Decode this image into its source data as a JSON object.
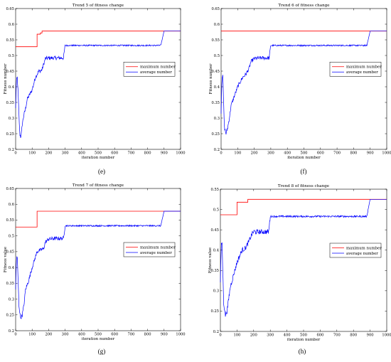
{
  "chart_data": [
    {
      "type": "line",
      "panel_label": "(e)",
      "title": "Trend 5 of fitness change",
      "xlabel": "iteration number",
      "ylabel": "Fitness number",
      "xlim": [
        0,
        1000
      ],
      "ylim": [
        0.2,
        0.65
      ],
      "xticks": [
        "0",
        "100",
        "200",
        "300",
        "400",
        "500",
        "600",
        "700",
        "800",
        "900",
        "1000"
      ],
      "yticks": [
        "0.2",
        "0.25",
        "0.3",
        "0.35",
        "0.4",
        "0.45",
        "0.5",
        "0.55",
        "0.6",
        "0.65"
      ],
      "legend_position": "center-right",
      "series": [
        {
          "name": "maximum number",
          "color": "#ff0000",
          "style": "step",
          "x": [
            0,
            130,
            130,
            150,
            150,
            160,
            160,
            1000
          ],
          "y": [
            0.528,
            0.528,
            0.568,
            0.568,
            0.572,
            0.572,
            0.578,
            0.578
          ]
        },
        {
          "name": "average number",
          "color": "#0000ff",
          "style": "noisy",
          "x": [
            0,
            5,
            10,
            15,
            20,
            25,
            30,
            35,
            40,
            50,
            60,
            70,
            80,
            100,
            120,
            130,
            140,
            150,
            160,
            180,
            200,
            240,
            290,
            300,
            320,
            400,
            500,
            600,
            700,
            800,
            880,
            900,
            1000
          ],
          "y": [
            0.33,
            0.42,
            0.43,
            0.38,
            0.31,
            0.25,
            0.24,
            0.25,
            0.28,
            0.31,
            0.33,
            0.36,
            0.37,
            0.39,
            0.43,
            0.44,
            0.45,
            0.45,
            0.455,
            0.49,
            0.492,
            0.492,
            0.492,
            0.532,
            0.532,
            0.532,
            0.532,
            0.532,
            0.532,
            0.532,
            0.532,
            0.578,
            0.578
          ]
        }
      ]
    },
    {
      "type": "line",
      "panel_label": "(f)",
      "title": "Trend 6 of fitness change",
      "xlabel": "iteration number",
      "ylabel": "Fitness number",
      "xlim": [
        0,
        1000
      ],
      "ylim": [
        0.2,
        0.65
      ],
      "xticks": [
        "0",
        "100",
        "200",
        "300",
        "400",
        "500",
        "600",
        "700",
        "800",
        "900",
        "1000"
      ],
      "yticks": [
        "0.2",
        "0.25",
        "0.3",
        "0.35",
        "0.4",
        "0.45",
        "0.5",
        "0.55",
        "0.6",
        "0.65"
      ],
      "legend_position": "center-right",
      "series": [
        {
          "name": "maximum number",
          "color": "#ff0000",
          "style": "step",
          "x": [
            0,
            1000
          ],
          "y": [
            0.578,
            0.578
          ]
        },
        {
          "name": "average number",
          "color": "#0000ff",
          "style": "noisy",
          "x": [
            0,
            5,
            10,
            15,
            20,
            30,
            40,
            50,
            60,
            80,
            100,
            130,
            150,
            170,
            180,
            200,
            240,
            290,
            300,
            320,
            400,
            500,
            600,
            700,
            800,
            880,
            900,
            1000
          ],
          "y": [
            0.32,
            0.43,
            0.44,
            0.35,
            0.27,
            0.25,
            0.27,
            0.3,
            0.34,
            0.37,
            0.4,
            0.43,
            0.44,
            0.46,
            0.48,
            0.49,
            0.492,
            0.492,
            0.532,
            0.532,
            0.532,
            0.532,
            0.532,
            0.532,
            0.532,
            0.532,
            0.578,
            0.578
          ]
        }
      ]
    },
    {
      "type": "line",
      "panel_label": "(g)",
      "title": "Trend 7 of fitness change",
      "xlabel": "iteration number",
      "ylabel": "Fitness value",
      "xlim": [
        0,
        1000
      ],
      "ylim": [
        0.2,
        0.65
      ],
      "xticks": [
        "0",
        "100",
        "200",
        "300",
        "400",
        "500",
        "600",
        "700",
        "800",
        "900",
        "1000"
      ],
      "yticks": [
        "0.2",
        "0.25",
        "0.3",
        "0.35",
        "0.4",
        "0.45",
        "0.5",
        "0.55",
        "0.6",
        "0.65"
      ],
      "legend_position": "center-right",
      "series": [
        {
          "name": "maximum number",
          "color": "#ff0000",
          "style": "step",
          "x": [
            0,
            130,
            130,
            1000
          ],
          "y": [
            0.528,
            0.528,
            0.578,
            0.578
          ]
        },
        {
          "name": "average number",
          "color": "#0000ff",
          "style": "noisy",
          "x": [
            0,
            5,
            10,
            15,
            20,
            30,
            40,
            50,
            60,
            80,
            100,
            130,
            150,
            170,
            180,
            200,
            240,
            290,
            300,
            320,
            400,
            500,
            600,
            700,
            800,
            880,
            900,
            1000
          ],
          "y": [
            0.33,
            0.43,
            0.43,
            0.36,
            0.28,
            0.24,
            0.25,
            0.28,
            0.33,
            0.36,
            0.4,
            0.45,
            0.455,
            0.46,
            0.48,
            0.49,
            0.492,
            0.492,
            0.532,
            0.532,
            0.532,
            0.532,
            0.532,
            0.532,
            0.532,
            0.532,
            0.578,
            0.578
          ]
        }
      ]
    },
    {
      "type": "line",
      "panel_label": "(h)",
      "title": "Trend 8 of fitness change",
      "xlabel": "iteration number",
      "ylabel": "Fitness value",
      "xlim": [
        0,
        1000
      ],
      "ylim": [
        0.2,
        0.55
      ],
      "xticks": [
        "0",
        "100",
        "200",
        "300",
        "400",
        "500",
        "600",
        "700",
        "800",
        "900",
        "1000"
      ],
      "yticks": [
        "0.2",
        "0.25",
        "0.3",
        "0.35",
        "0.4",
        "0.45",
        "0.5",
        "0.55"
      ],
      "legend_position": "center-right",
      "series": [
        {
          "name": "maximum number",
          "color": "#ff0000",
          "style": "step",
          "x": [
            0,
            100,
            100,
            165,
            165,
            1000
          ],
          "y": [
            0.487,
            0.487,
            0.518,
            0.518,
            0.525,
            0.525
          ]
        },
        {
          "name": "average number",
          "color": "#0000ff",
          "style": "noisy",
          "x": [
            0,
            5,
            10,
            15,
            20,
            30,
            40,
            50,
            60,
            80,
            100,
            130,
            150,
            170,
            190,
            200,
            240,
            290,
            300,
            320,
            400,
            500,
            600,
            700,
            800,
            880,
            900,
            1000
          ],
          "y": [
            0.32,
            0.41,
            0.42,
            0.34,
            0.27,
            0.24,
            0.25,
            0.28,
            0.31,
            0.34,
            0.37,
            0.4,
            0.405,
            0.42,
            0.44,
            0.445,
            0.445,
            0.445,
            0.483,
            0.483,
            0.483,
            0.483,
            0.483,
            0.483,
            0.483,
            0.483,
            0.525,
            0.525
          ]
        }
      ]
    }
  ]
}
